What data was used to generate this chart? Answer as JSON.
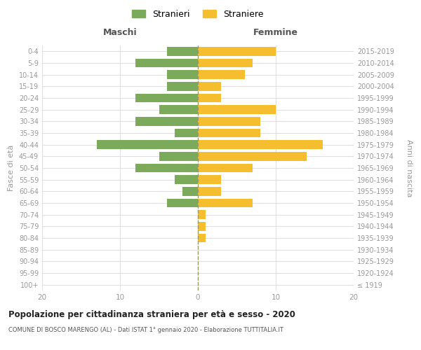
{
  "age_groups": [
    "100+",
    "95-99",
    "90-94",
    "85-89",
    "80-84",
    "75-79",
    "70-74",
    "65-69",
    "60-64",
    "55-59",
    "50-54",
    "45-49",
    "40-44",
    "35-39",
    "30-34",
    "25-29",
    "20-24",
    "15-19",
    "10-14",
    "5-9",
    "0-4"
  ],
  "birth_years": [
    "≤ 1919",
    "1920-1924",
    "1925-1929",
    "1930-1934",
    "1935-1939",
    "1940-1944",
    "1945-1949",
    "1950-1954",
    "1955-1959",
    "1960-1964",
    "1965-1969",
    "1970-1974",
    "1975-1979",
    "1980-1984",
    "1985-1989",
    "1990-1994",
    "1995-1999",
    "2000-2004",
    "2005-2009",
    "2010-2014",
    "2015-2019"
  ],
  "maschi": [
    0,
    0,
    0,
    0,
    0,
    0,
    0,
    4,
    2,
    3,
    8,
    5,
    13,
    3,
    8,
    5,
    8,
    4,
    4,
    8,
    4
  ],
  "femmine": [
    0,
    0,
    0,
    0,
    1,
    1,
    1,
    7,
    3,
    3,
    7,
    14,
    16,
    8,
    8,
    10,
    3,
    3,
    6,
    7,
    10
  ],
  "color_maschi": "#7aaa5a",
  "color_femmine": "#f5be2e",
  "title": "Popolazione per cittadinanza straniera per età e sesso - 2020",
  "subtitle": "COMUNE DI BOSCO MARENGO (AL) - Dati ISTAT 1° gennaio 2020 - Elaborazione TUTTITALIA.IT",
  "xlabel_left": "Maschi",
  "xlabel_right": "Femmine",
  "ylabel_left": "Fasce di età",
  "ylabel_right": "Anni di nascita",
  "legend_maschi": "Stranieri",
  "legend_femmine": "Straniere",
  "xlim": 20,
  "background_color": "#ffffff",
  "grid_color": "#e0e0e0",
  "dashed_line_color": "#999966"
}
